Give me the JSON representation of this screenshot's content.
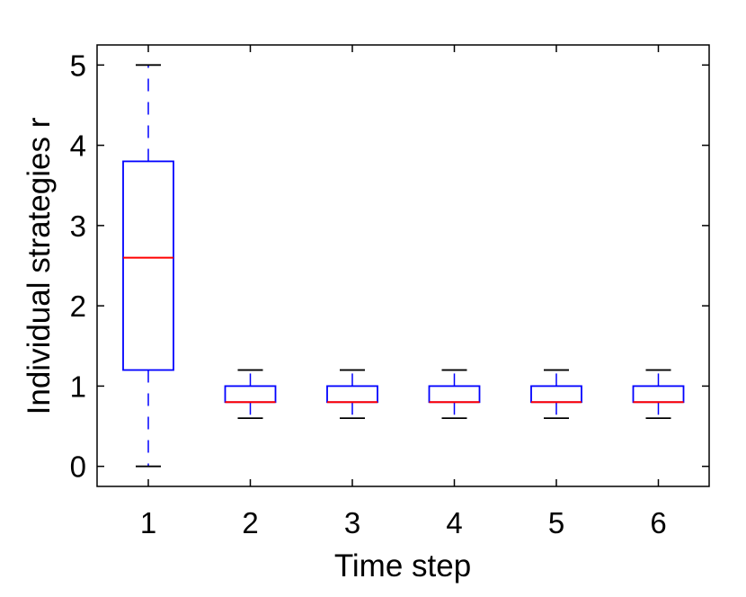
{
  "chart_data": {
    "type": "box",
    "xlabel": "Time step",
    "ylabel": "Individual strategies r",
    "categories": [
      "1",
      "2",
      "3",
      "4",
      "5",
      "6"
    ],
    "yticks": [
      "0",
      "1",
      "2",
      "3",
      "4",
      "5"
    ],
    "ylim": [
      -0.25,
      5.25
    ],
    "grid": false,
    "colors": {
      "box": "#0000ff",
      "median": "#ff0000",
      "whisker": "#0000ff",
      "cap": "#000000",
      "axis": "#000000"
    },
    "boxes": [
      {
        "x": "1",
        "whisker_low": 0.0,
        "q1": 1.2,
        "median": 2.6,
        "q3": 3.8,
        "whisker_high": 5.0
      },
      {
        "x": "2",
        "whisker_low": 0.6,
        "q1": 0.8,
        "median": 0.8,
        "q3": 1.0,
        "whisker_high": 1.2
      },
      {
        "x": "3",
        "whisker_low": 0.6,
        "q1": 0.8,
        "median": 0.8,
        "q3": 1.0,
        "whisker_high": 1.2
      },
      {
        "x": "4",
        "whisker_low": 0.6,
        "q1": 0.8,
        "median": 0.8,
        "q3": 1.0,
        "whisker_high": 1.2
      },
      {
        "x": "5",
        "whisker_low": 0.6,
        "q1": 0.8,
        "median": 0.8,
        "q3": 1.0,
        "whisker_high": 1.2
      },
      {
        "x": "6",
        "whisker_low": 0.6,
        "q1": 0.8,
        "median": 0.8,
        "q3": 1.0,
        "whisker_high": 1.2
      }
    ]
  }
}
